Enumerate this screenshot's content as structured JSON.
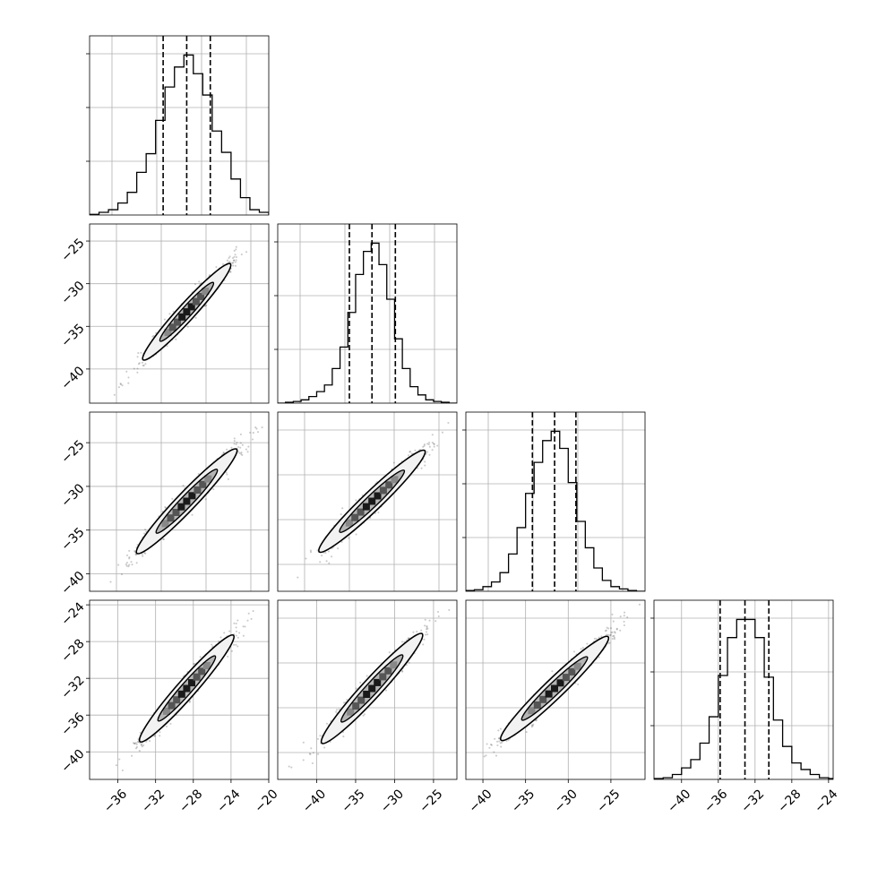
{
  "chart_data": [
    {
      "type": "histogram",
      "panel": "0,0",
      "xlim": [
        -39,
        -20
      ],
      "yticks_count": 3,
      "bins": [
        -39,
        -38,
        -37,
        -36,
        -35,
        -34,
        -33,
        -32,
        -31,
        -30,
        -29,
        -28,
        -27,
        -26,
        -25,
        -24,
        -23,
        -22,
        -21,
        -20
      ],
      "counts": [
        0.5,
        2,
        4,
        9,
        17,
        32,
        46,
        71,
        96,
        111,
        120,
        106,
        90,
        63,
        47,
        27,
        13,
        4,
        2
      ],
      "quantiles": [
        -31.2,
        -28.7,
        -26.2
      ],
      "grid": true
    },
    {
      "type": "scatter_contour",
      "panel": "1,0",
      "xlim": [
        -39,
        -20
      ],
      "ylim": [
        -44,
        -23
      ],
      "yticks": [
        -25,
        -30,
        -35,
        -40
      ],
      "ytick_labels": [
        "−25",
        "−30",
        "−35",
        "−40"
      ],
      "mean": [
        -28.7,
        -33.3
      ],
      "cloud_from": [
        -35.5,
        -41.5
      ],
      "cloud_to": [
        -21.5,
        -24.5
      ],
      "grid": true
    },
    {
      "type": "histogram",
      "panel": "1,1",
      "xlim": [
        -45,
        -22
      ],
      "yticks_count": 3,
      "bins": [
        -45,
        -44,
        -43,
        -42,
        -41,
        -40,
        -39,
        -38,
        -37,
        -36,
        -35,
        -34,
        -33,
        -32,
        -31,
        -30,
        -29,
        -28,
        -27,
        -26,
        -25,
        -24,
        -23,
        -22
      ],
      "counts": [
        0,
        0.5,
        1,
        2,
        4,
        7,
        11,
        21,
        34,
        55,
        78,
        92,
        97,
        84,
        63,
        39,
        21,
        10,
        5,
        2,
        1,
        0.5,
        0
      ],
      "quantiles": [
        -35.8,
        -32.9,
        -29.9
      ],
      "grid": true
    },
    {
      "type": "scatter_contour",
      "panel": "2,0",
      "xlim": [
        -39,
        -20
      ],
      "ylim": [
        -42,
        -21.5
      ],
      "yticks": [
        -25,
        -30,
        -35,
        -40
      ],
      "ytick_labels": [
        "−25",
        "−30",
        "−35",
        "−40"
      ],
      "mean": [
        -28.7,
        -31.7
      ],
      "cloud_from": [
        -36.5,
        -40.5
      ],
      "cloud_to": [
        -20.5,
        -22.5
      ],
      "grid": true
    },
    {
      "type": "scatter_contour",
      "panel": "2,1",
      "xlim": [
        -45,
        -22
      ],
      "ylim": [
        -42,
        -21.5
      ],
      "mean": [
        -32.9,
        -31.7
      ],
      "cloud_from": [
        -43.5,
        -40
      ],
      "cloud_to": [
        -23,
        -22.5
      ],
      "grid": true
    },
    {
      "type": "histogram",
      "panel": "2,2",
      "xlim": [
        -42,
        -21
      ],
      "yticks_count": 3,
      "bins": [
        -42,
        -41,
        -40,
        -39,
        -38,
        -37,
        -36,
        -35,
        -34,
        -33,
        -32,
        -31,
        -30,
        -29,
        -28,
        -27,
        -26,
        -25,
        -24,
        -23,
        -22,
        -21
      ],
      "counts": [
        0.5,
        1,
        3,
        6,
        12,
        24,
        41,
        63,
        83,
        97,
        103,
        92,
        70,
        45,
        28,
        15,
        7,
        3,
        1.5,
        0.5,
        0
      ],
      "quantiles": [
        -34.2,
        -31.6,
        -29.1
      ],
      "grid": true
    },
    {
      "type": "scatter_contour",
      "panel": "3,0",
      "xlim": [
        -39,
        -20
      ],
      "ylim": [
        -43,
        -23.5
      ],
      "yticks": [
        -24,
        -28,
        -32,
        -36,
        -40
      ],
      "ytick_labels": [
        "−24",
        "−28",
        "−32",
        "−36",
        "−40"
      ],
      "xticks": [
        -36,
        -32,
        -28,
        -24,
        -20
      ],
      "xtick_labels": [
        "−36",
        "−32",
        "−28",
        "−24",
        "−20"
      ],
      "mean": [
        -28.7,
        -33.1
      ],
      "cloud_from": [
        -36.5,
        -41.5
      ],
      "cloud_to": [
        -21.5,
        -24
      ],
      "grid": true
    },
    {
      "type": "scatter_contour",
      "panel": "3,1",
      "xlim": [
        -45,
        -22
      ],
      "ylim": [
        -43,
        -23.5
      ],
      "xticks": [
        -40,
        -35,
        -30,
        -25
      ],
      "xtick_labels": [
        "−40",
        "−35",
        "−30",
        "−25"
      ],
      "mean": [
        -32.9,
        -33.1
      ],
      "cloud_from": [
        -43,
        -42
      ],
      "cloud_to": [
        -23.5,
        -24
      ],
      "grid": true
    },
    {
      "type": "scatter_contour",
      "panel": "3,2",
      "xlim": [
        -42,
        -21
      ],
      "ylim": [
        -43,
        -23.5
      ],
      "xticks": [
        -40,
        -35,
        -30,
        -25
      ],
      "xtick_labels": [
        "−40",
        "−35",
        "−30",
        "−25"
      ],
      "mean": [
        -31.6,
        -33.1
      ],
      "cloud_from": [
        -40.5,
        -41
      ],
      "cloud_to": [
        -21.5,
        -24
      ],
      "grid": true
    },
    {
      "type": "histogram",
      "panel": "3,3",
      "xlim": [
        -43,
        -23.5
      ],
      "yticks_count": 3,
      "xticks": [
        -40,
        -36,
        -32,
        -28,
        -24
      ],
      "xtick_labels": [
        "−40",
        "−36",
        "−32",
        "−28",
        "−24"
      ],
      "bins": [
        -43,
        -42,
        -41,
        -40,
        -39,
        -38,
        -37,
        -36,
        -35,
        -34,
        -33,
        -32,
        -31,
        -30,
        -29,
        -28,
        -27,
        -26,
        -25,
        -24,
        -23.5
      ],
      "counts": [
        0.5,
        1,
        3,
        7,
        12,
        22,
        38,
        63,
        86,
        97,
        97,
        86,
        62,
        36,
        20,
        10,
        6,
        3,
        1,
        0.5
      ],
      "quantiles": [
        -35.8,
        -33.1,
        -30.5
      ],
      "grid": true
    }
  ]
}
